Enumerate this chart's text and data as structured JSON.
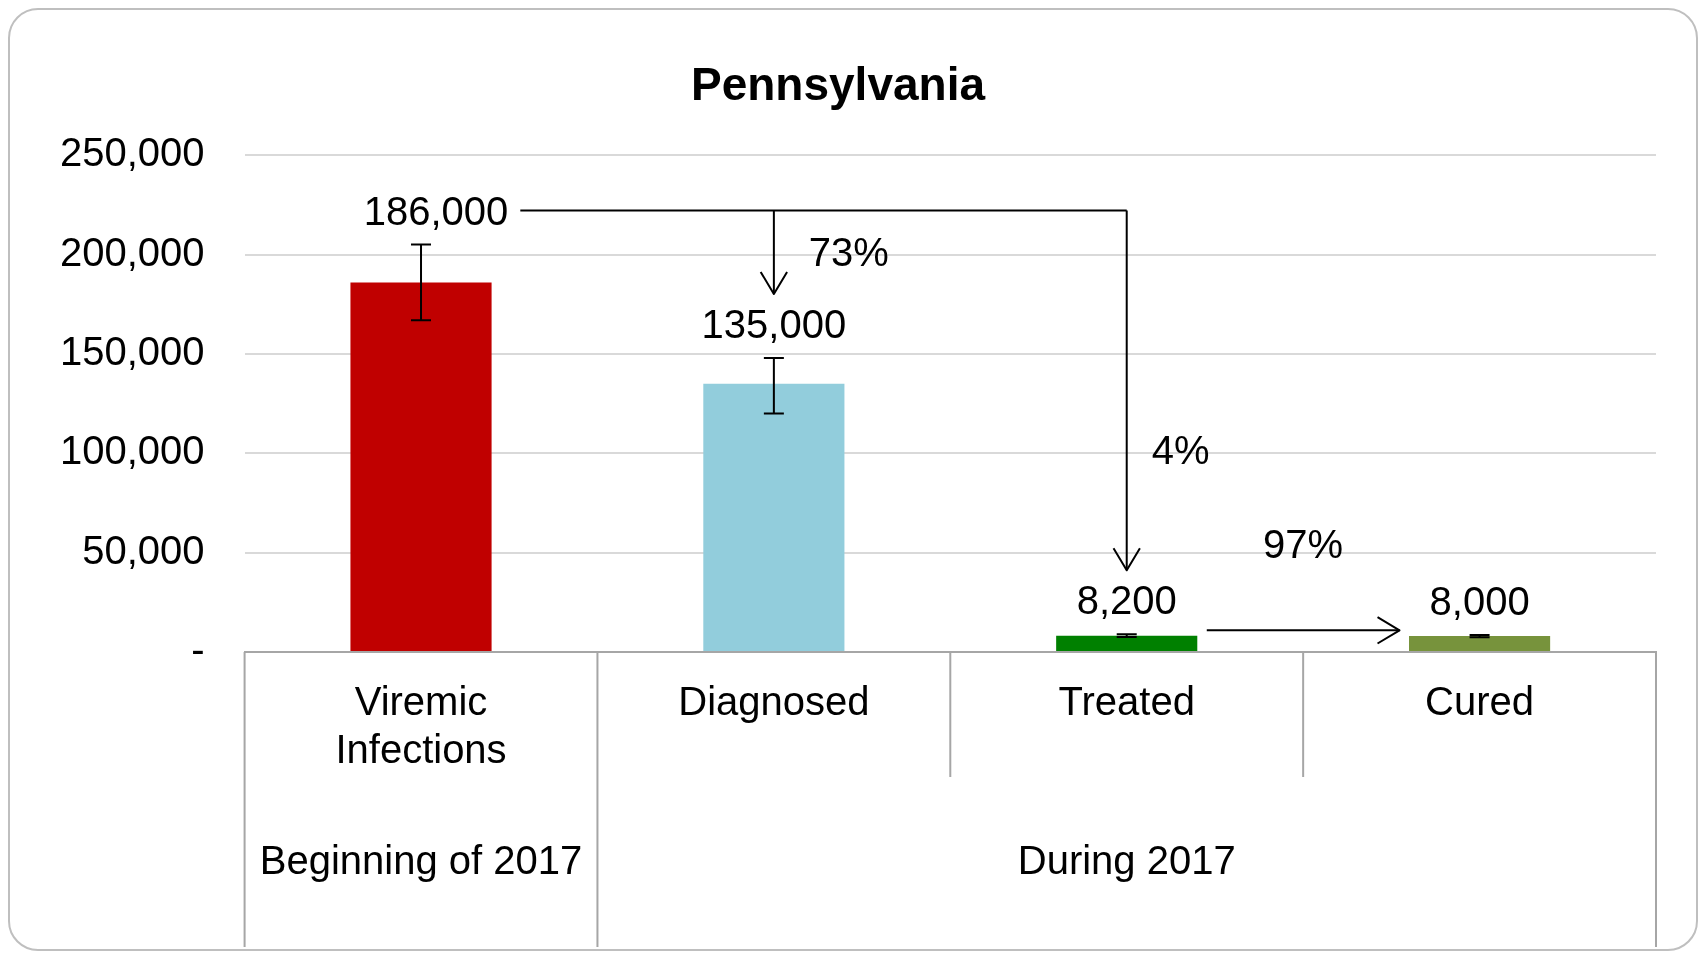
{
  "chart_data": {
    "type": "bar",
    "title": "Pennsylvania",
    "categories": [
      "Viremic Infections",
      "Diagnosed",
      "Treated",
      "Cured"
    ],
    "values": [
      186000,
      135000,
      8200,
      8000
    ],
    "colors": [
      "#c00000",
      "#92cddc",
      "#008000",
      "#77933c"
    ],
    "errors": [
      [
        167000,
        205000
      ],
      [
        120000,
        148000
      ],
      [
        7500,
        8900
      ],
      [
        7400,
        8600
      ]
    ],
    "value_labels": [
      "186,000",
      "135,000",
      "8,200",
      "8,000"
    ],
    "ylim": [
      0,
      250000
    ],
    "yticks": [
      {
        "value": 0,
        "label": "-"
      },
      {
        "value": 50000,
        "label": "50,000"
      },
      {
        "value": 100000,
        "label": "100,000"
      },
      {
        "value": 150000,
        "label": "150,000"
      },
      {
        "value": 200000,
        "label": "200,000"
      },
      {
        "value": 250000,
        "label": "250,000"
      }
    ],
    "grid": "y",
    "legend": false,
    "annotations": [
      "73%",
      "4%",
      "97%",
      "Beginning of 2017",
      "During 2017"
    ]
  }
}
